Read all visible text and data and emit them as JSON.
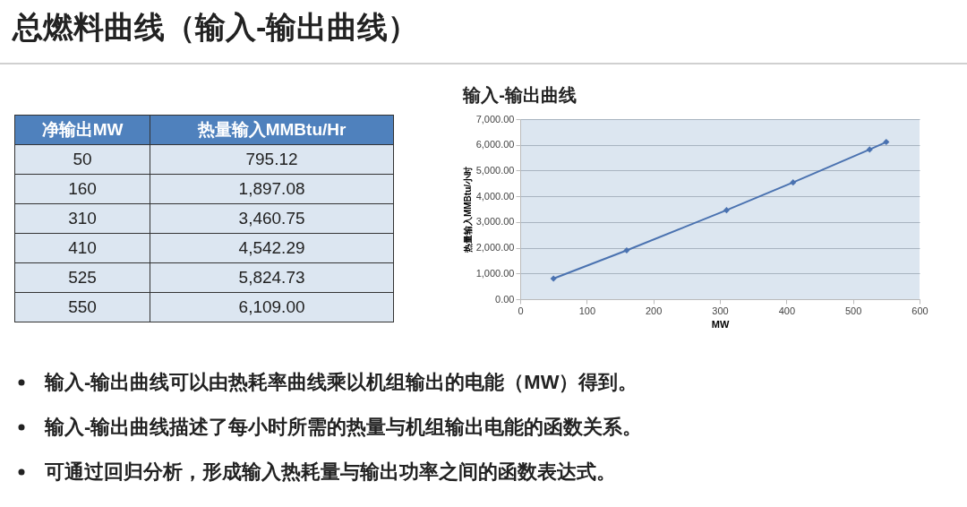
{
  "chart_data": [
    {
      "type": "other",
      "title": "总燃料曲线（输入-输出曲线）",
      "xlabel": "净输出MW",
      "ylabel": "热量输入MMBtu/Hr",
      "categories": [
        "50",
        "160",
        "310",
        "410",
        "525",
        "550"
      ],
      "value_labels": [
        "795.12",
        "1,897.08",
        "3,460.75",
        "4,542.29",
        "5,824.73",
        "6,109.00"
      ],
      "annotations": [
        "输入-输出曲线可以由热耗率曲线乘以机组输出的电能（MW）得到。",
        "输入-输出曲线描述了每小时所需的热量与机组输出电能的函数关系。",
        "可通过回归分析，形成输入热耗量与输出功率之间的函数表达式。"
      ]
    },
    {
      "type": "line",
      "title": "输入-输出曲线",
      "xlabel": "MW",
      "ylabel": "热量输入MMBtu/小时",
      "x": [
        50,
        160,
        310,
        410,
        525,
        550
      ],
      "series": [
        {
          "color": "#4a72b0",
          "values": [
            800,
            1900,
            3460,
            4540,
            5820,
            6110
          ]
        }
      ],
      "xlim": [
        0,
        600
      ],
      "xticks": [
        0,
        100,
        200,
        300,
        400,
        500,
        600
      ],
      "ylim": [
        0,
        7000
      ],
      "yticks": [
        {
          "value": 0,
          "label": "0.00"
        },
        {
          "value": 1000,
          "label": "1,000.00"
        },
        {
          "value": 2000,
          "label": "2,000.00"
        },
        {
          "value": 3000,
          "label": "3,000.00"
        },
        {
          "value": 4000,
          "label": "4,000.00"
        },
        {
          "value": 5000,
          "label": "5,000.00"
        },
        {
          "value": 6000,
          "label": "6,000.00"
        },
        {
          "value": 7000,
          "label": "7,000.00"
        }
      ],
      "grid": "y",
      "marker": "diamond"
    }
  ]
}
